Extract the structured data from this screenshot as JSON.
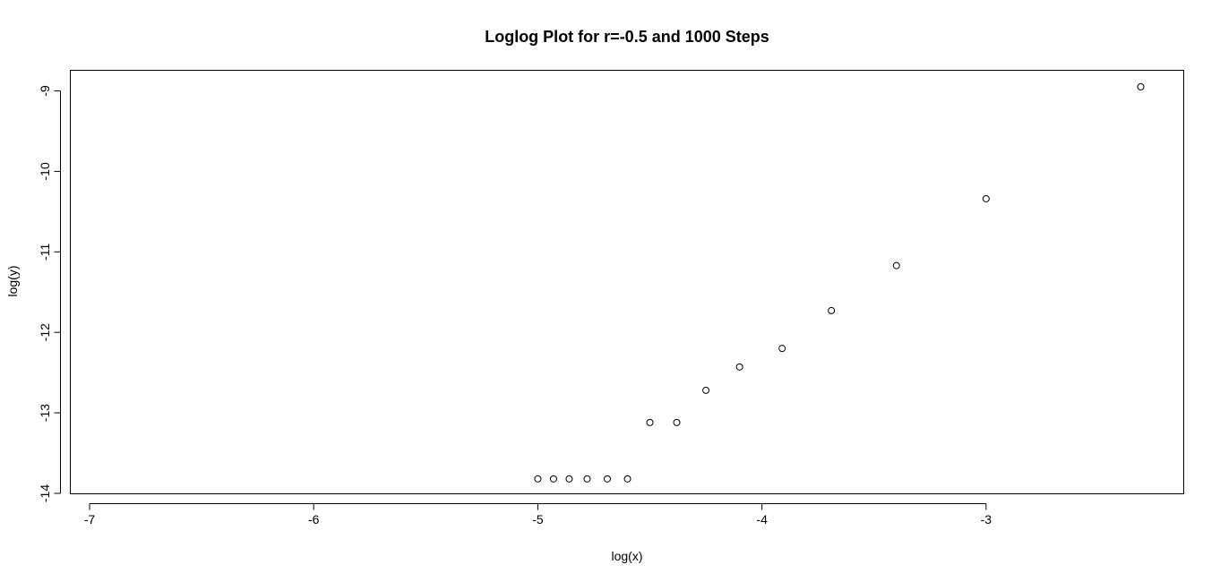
{
  "chart_data": {
    "type": "scatter",
    "title": "Loglog Plot for r=-0.5 and 1000 Steps",
    "xlabel": "log(x)",
    "ylabel": "log(y)",
    "xlim": [
      -7.0,
      -2.3
    ],
    "ylim": [
      -14.0,
      -8.85
    ],
    "x_ticks": [
      -7,
      -6,
      -5,
      -4,
      -3
    ],
    "x_tick_labels": [
      "-7",
      "-6",
      "-5",
      "-4",
      "-3"
    ],
    "y_ticks": [
      -14,
      -13,
      -12,
      -11,
      -10,
      -9
    ],
    "y_tick_labels": [
      "-14",
      "-13",
      "-12",
      "-11",
      "-10",
      "-9"
    ],
    "grid": false,
    "marker": "open-circle",
    "points": [
      {
        "x": -5.0,
        "y": -13.82
      },
      {
        "x": -4.93,
        "y": -13.82
      },
      {
        "x": -4.86,
        "y": -13.82
      },
      {
        "x": -4.78,
        "y": -13.82
      },
      {
        "x": -4.69,
        "y": -13.82
      },
      {
        "x": -4.6,
        "y": -13.82
      },
      {
        "x": -4.5,
        "y": -13.12
      },
      {
        "x": -4.38,
        "y": -13.12
      },
      {
        "x": -4.25,
        "y": -12.72
      },
      {
        "x": -4.1,
        "y": -12.43
      },
      {
        "x": -3.91,
        "y": -12.2
      },
      {
        "x": -3.69,
        "y": -11.73
      },
      {
        "x": -3.4,
        "y": -11.17
      },
      {
        "x": -3.0,
        "y": -10.34
      },
      {
        "x": -2.31,
        "y": -8.95
      }
    ]
  }
}
